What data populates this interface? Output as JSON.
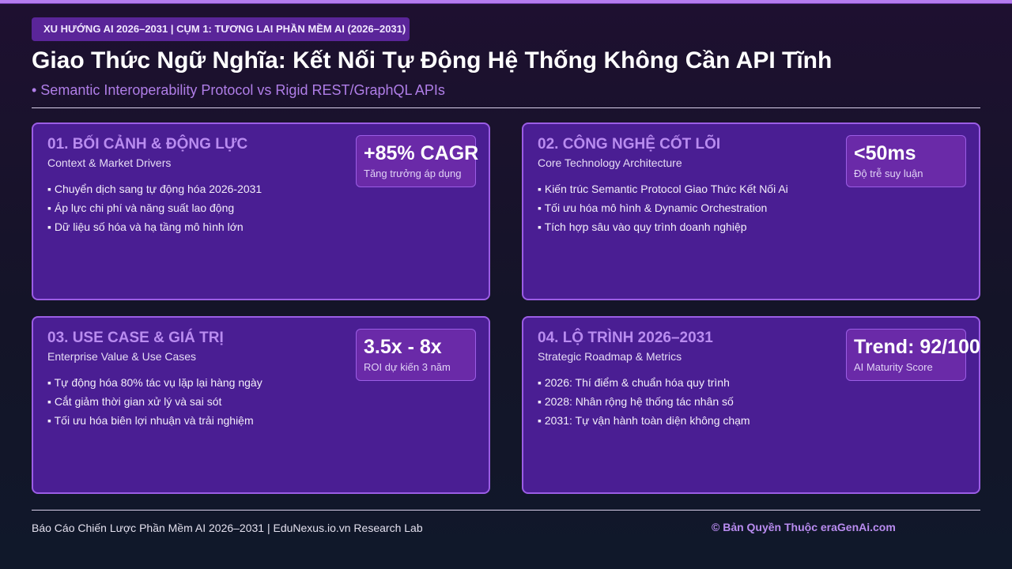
{
  "header": {
    "tag": "XU HƯỚNG AI 2026–2031 | CỤM 1: TƯƠNG LAI PHẦN MỀM AI (2026–2031)",
    "title": "Giao Thức Ngữ Nghĩa: Kết Nối Tự Động Hệ Thống Không Cần API Tĩnh",
    "subtitle": "• Semantic Interoperability Protocol vs Rigid REST/GraphQL APIs"
  },
  "cards": [
    {
      "title": "01. BỐI CẢNH & ĐỘNG LỰC",
      "subtitle": "Context & Market Drivers",
      "metric": {
        "value": "+85% CAGR",
        "label": "Tăng trưởng áp dụng"
      },
      "bullets": [
        "▪ Chuyển dịch sang tự động hóa 2026-2031",
        "▪ Áp lực chi phí và năng suất lao động",
        "▪ Dữ liệu số hóa và hạ tầng mô hình lớn"
      ]
    },
    {
      "title": "02. CÔNG NGHỆ CỐT LÕI",
      "subtitle": "Core Technology Architecture",
      "metric": {
        "value": "<50ms",
        "label": "Độ trễ suy luận"
      },
      "bullets": [
        "▪ Kiến trúc Semantic Protocol Giao Thức Kết Nối Ai",
        "▪ Tối ưu hóa mô hình & Dynamic Orchestration",
        "▪ Tích hợp sâu vào quy trình doanh nghiệp"
      ]
    },
    {
      "title": "03. USE CASE & GIÁ TRỊ",
      "subtitle": "Enterprise Value & Use Cases",
      "metric": {
        "value": "3.5x - 8x",
        "label": "ROI dự kiến 3 năm"
      },
      "bullets": [
        "▪ Tự động hóa 80% tác vụ lặp lại hàng ngày",
        "▪ Cắt giảm thời gian xử lý và sai sót",
        "▪ Tối ưu hóa biên lợi nhuận và trải nghiệm"
      ]
    },
    {
      "title": "04. LỘ TRÌNH 2026–2031",
      "subtitle": "Strategic Roadmap & Metrics",
      "metric": {
        "value": "Trend: 92/100",
        "label": "AI Maturity Score"
      },
      "bullets": [
        "▪ 2026: Thí điểm & chuẩn hóa quy trình",
        "▪ 2028: Nhân rộng hệ thống tác nhân số",
        "▪ 2031: Tự vận hành toàn diện không chạm"
      ]
    }
  ],
  "footer": {
    "left": "Báo Cáo Chiến Lược Phần Mềm AI 2026–2031 | EduNexus.io.vn Research Lab",
    "right": "© Bản Quyền Thuộc eraGenAi.com"
  }
}
